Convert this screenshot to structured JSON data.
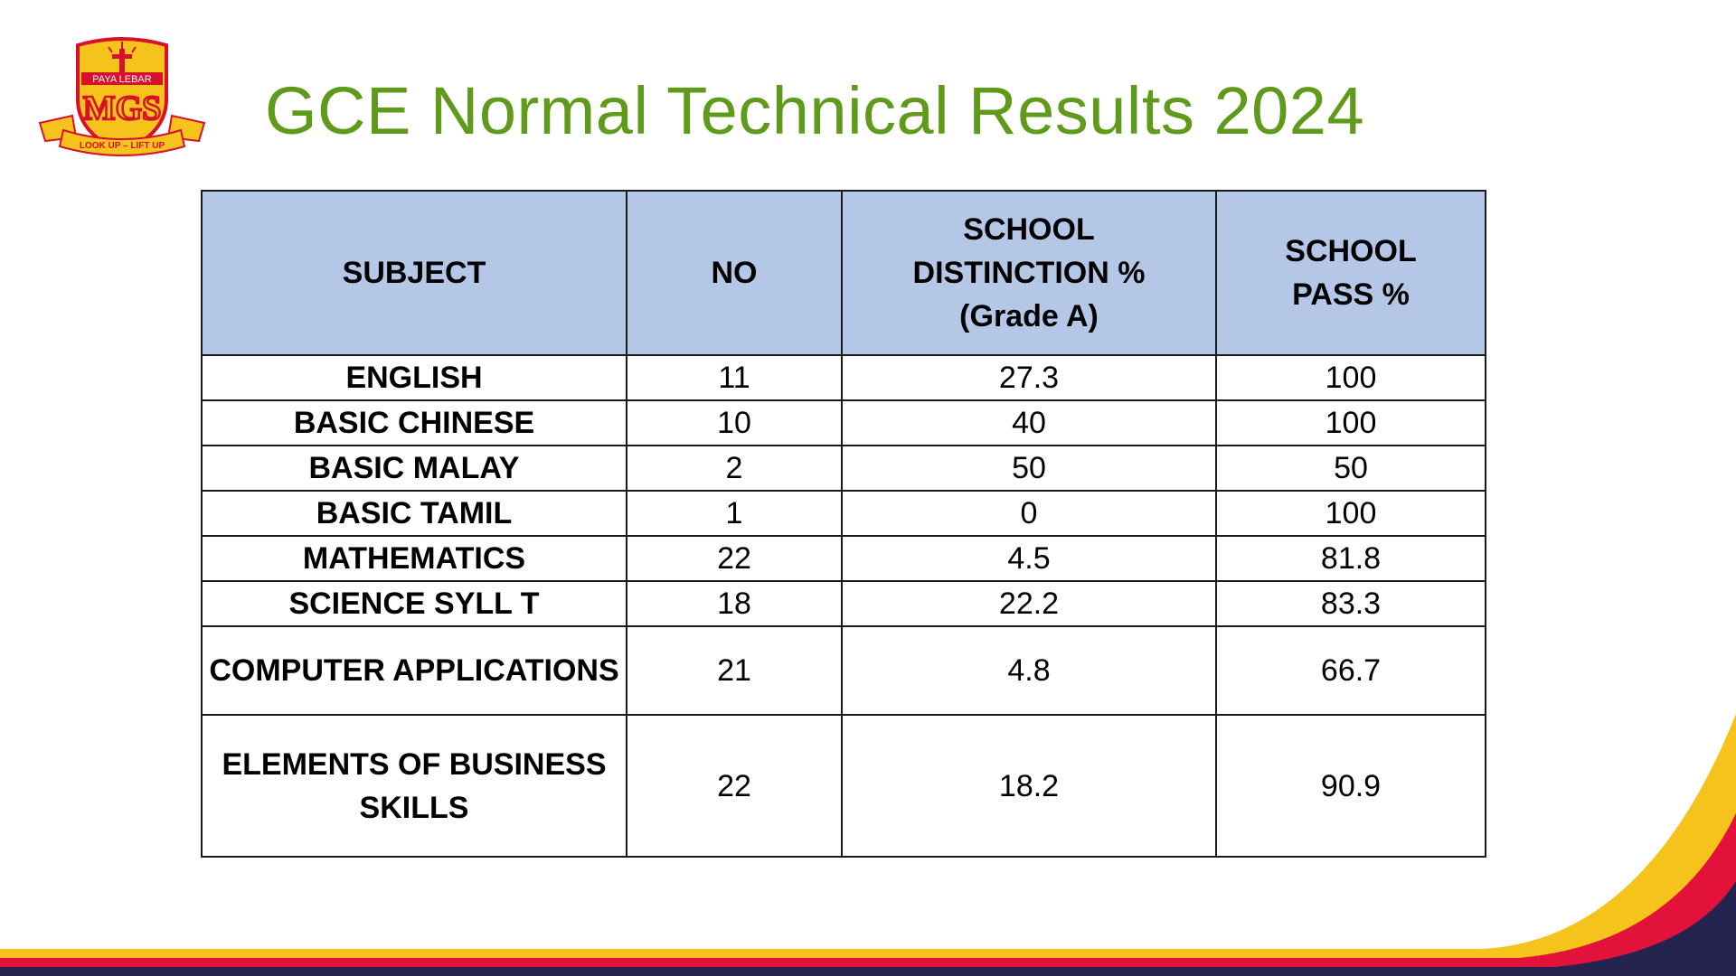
{
  "slide": {
    "title": "GCE Normal Technical Results 2024"
  },
  "logo": {
    "school_name": "PAYA LEBAR",
    "monogram": "MGS",
    "motto": "LOOK UP – LIFT UP",
    "colors": {
      "shield": "#f6c21c",
      "border": "#d6102d",
      "cross": "#d6102d",
      "banner": "#f6c21c"
    }
  },
  "table": {
    "headers": {
      "subject": "SUBJECT",
      "no": "NO",
      "distinction_line1": "SCHOOL",
      "distinction_line2": "DISTINCTION %",
      "distinction_line3": "(Grade A)",
      "pass_line1": "SCHOOL",
      "pass_line2": "PASS %"
    },
    "rows": [
      {
        "subject": "ENGLISH",
        "no": "11",
        "distinction": "27.3",
        "pass": "100"
      },
      {
        "subject": "BASIC CHINESE",
        "no": "10",
        "distinction": "40",
        "pass": "100"
      },
      {
        "subject": "BASIC MALAY",
        "no": "2",
        "distinction": "50",
        "pass": "50"
      },
      {
        "subject": "BASIC TAMIL",
        "no": "1",
        "distinction": "0",
        "pass": "100"
      },
      {
        "subject": "MATHEMATICS",
        "no": "22",
        "distinction": "4.5",
        "pass": "81.8"
      },
      {
        "subject": "SCIENCE SYLL T",
        "no": "18",
        "distinction": "22.2",
        "pass": "83.3"
      },
      {
        "subject": "COMPUTER APPLICATIONS",
        "no": "21",
        "distinction": "4.8",
        "pass": "66.7"
      },
      {
        "subject_line1": "ELEMENTS OF BUSINESS",
        "subject_line2": "SKILLS",
        "no": "22",
        "distinction": "18.2",
        "pass": "90.9"
      }
    ]
  },
  "theme": {
    "title_color": "#5f9a1a",
    "header_fill": "#b4c7e7",
    "swoosh_yellow": "#f6c21c",
    "swoosh_red": "#e3123a",
    "swoosh_navy": "#25234f"
  }
}
